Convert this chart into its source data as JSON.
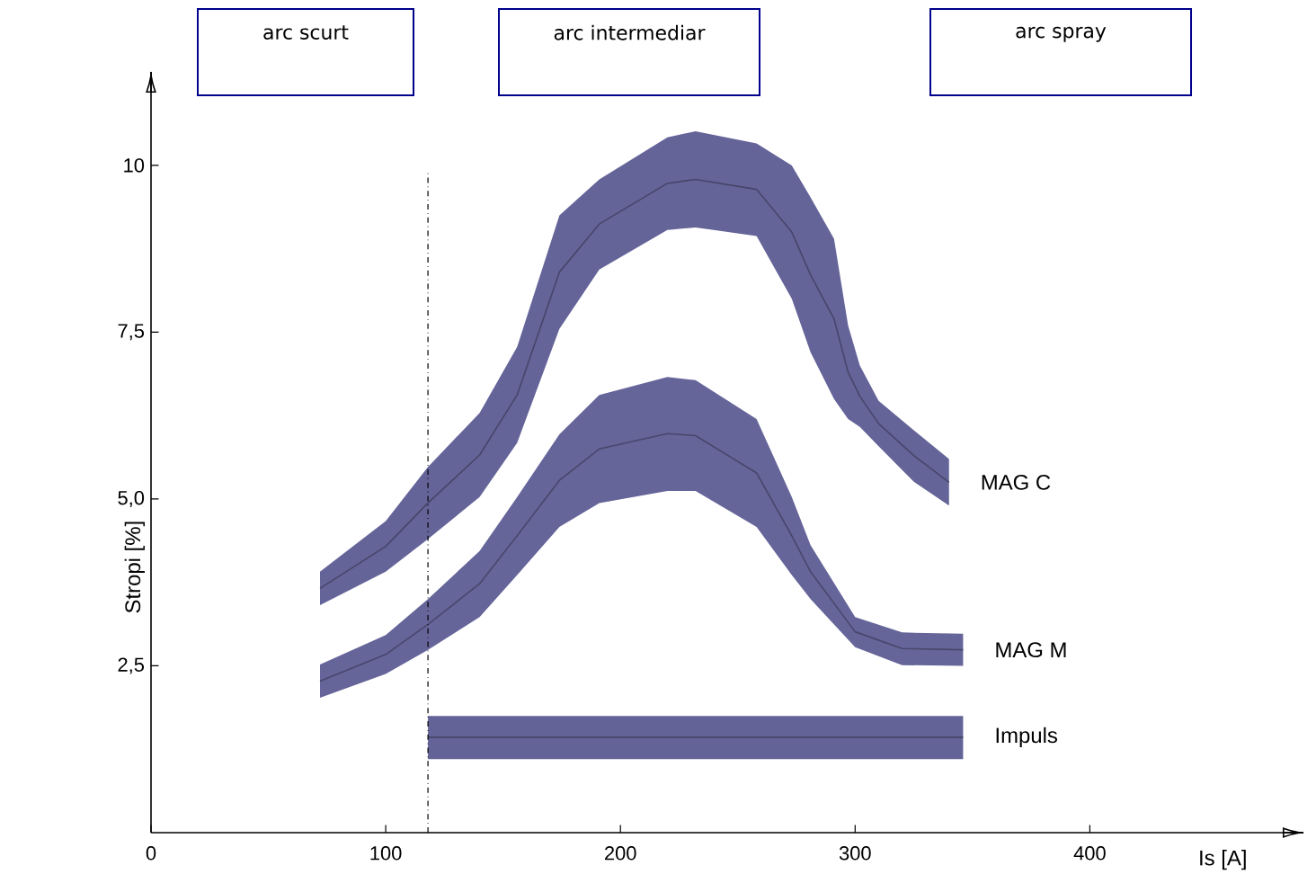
{
  "chart_data": {
    "type": "line",
    "xlabel": "Is [A]",
    "ylabel": "Stropi [%]",
    "xlim": [
      0,
      491
    ],
    "ylim": [
      0,
      11.4
    ],
    "xticks": [
      0,
      100,
      200,
      300,
      400
    ],
    "yticks": [
      {
        "value": 2.5,
        "label": "2,5"
      },
      {
        "value": 5,
        "label": "5,0"
      },
      {
        "value": 7.5,
        "label": "7,5"
      },
      10
    ],
    "series": [
      {
        "name": "MAG C",
        "color": "#46466b",
        "x": [
          72,
          100,
          118,
          140,
          156,
          174,
          191,
          220,
          232,
          258,
          273,
          281,
          291,
          297,
          302,
          310,
          325,
          340
        ],
        "values": [
          3.66,
          4.29,
          4.94,
          5.66,
          6.56,
          8.4,
          9.12,
          9.73,
          9.79,
          9.64,
          9.0,
          8.36,
          7.7,
          6.9,
          6.54,
          6.13,
          5.65,
          5.25
        ],
        "upper": [
          3.91,
          4.67,
          5.48,
          6.29,
          7.28,
          9.25,
          9.79,
          10.42,
          10.51,
          10.33,
          10.0,
          9.52,
          8.9,
          7.6,
          7.0,
          6.47,
          6.03,
          5.6
        ],
        "lower": [
          3.41,
          3.91,
          4.4,
          5.03,
          5.84,
          7.55,
          8.44,
          9.03,
          9.07,
          8.94,
          8.0,
          7.2,
          6.5,
          6.2,
          6.08,
          5.79,
          5.26,
          4.9
        ]
      },
      {
        "name": "MAG M",
        "color": "#47476c",
        "x": [
          72,
          100,
          118,
          140,
          156,
          174,
          191,
          220,
          232,
          258,
          273,
          281,
          300,
          320,
          346
        ],
        "values": [
          2.27,
          2.67,
          3.12,
          3.73,
          4.45,
          5.28,
          5.75,
          5.98,
          5.95,
          5.39,
          4.45,
          3.91,
          3.01,
          2.76,
          2.74
        ],
        "upper": [
          2.52,
          2.96,
          3.5,
          4.22,
          5.03,
          5.97,
          6.56,
          6.83,
          6.78,
          6.2,
          5.03,
          4.31,
          3.23,
          3.0,
          2.98
        ],
        "lower": [
          2.02,
          2.38,
          2.74,
          3.23,
          3.86,
          4.58,
          4.94,
          5.12,
          5.12,
          4.58,
          3.86,
          3.5,
          2.78,
          2.51,
          2.5
        ]
      },
      {
        "name": "Impuls",
        "color": "#45456a",
        "x": [
          118,
          346
        ],
        "values": [
          1.43,
          1.43
        ],
        "upper": [
          1.75,
          1.75
        ],
        "lower": [
          1.1,
          1.1
        ]
      }
    ],
    "ref_lines": [
      {
        "axis": "x",
        "value": 118,
        "line_style": "dashdot"
      }
    ],
    "annotations": [
      "arc scurt",
      "arc intermediar",
      "arc spray"
    ]
  }
}
